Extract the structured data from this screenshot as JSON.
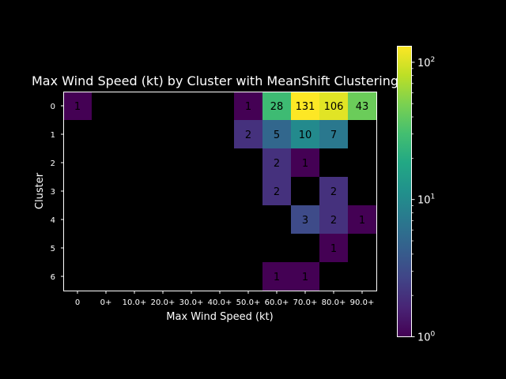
{
  "chart_data": {
    "type": "heatmap",
    "title": "Max Wind Speed (kt) by Cluster with MeanShift Clustering",
    "xlabel": "Max Wind Speed (kt)",
    "ylabel": "Cluster",
    "x_categories": [
      "0",
      "0+",
      "10.0+",
      "20.0+",
      "30.0+",
      "40.0+",
      "50.0+",
      "60.0+",
      "70.0+",
      "80.0+",
      "90.0+"
    ],
    "y_categories": [
      "0",
      "1",
      "2",
      "3",
      "4",
      "5",
      "6"
    ],
    "cells": [
      {
        "cluster": "0",
        "bin": "0",
        "value": 1
      },
      {
        "cluster": "0",
        "bin": "50.0+",
        "value": 1
      },
      {
        "cluster": "0",
        "bin": "60.0+",
        "value": 28
      },
      {
        "cluster": "0",
        "bin": "70.0+",
        "value": 131
      },
      {
        "cluster": "0",
        "bin": "80.0+",
        "value": 106
      },
      {
        "cluster": "0",
        "bin": "90.0+",
        "value": 43
      },
      {
        "cluster": "1",
        "bin": "50.0+",
        "value": 2
      },
      {
        "cluster": "1",
        "bin": "60.0+",
        "value": 5
      },
      {
        "cluster": "1",
        "bin": "70.0+",
        "value": 10
      },
      {
        "cluster": "1",
        "bin": "80.0+",
        "value": 7
      },
      {
        "cluster": "2",
        "bin": "60.0+",
        "value": 2
      },
      {
        "cluster": "2",
        "bin": "70.0+",
        "value": 1
      },
      {
        "cluster": "3",
        "bin": "60.0+",
        "value": 2
      },
      {
        "cluster": "3",
        "bin": "80.0+",
        "value": 2
      },
      {
        "cluster": "4",
        "bin": "70.0+",
        "value": 3
      },
      {
        "cluster": "4",
        "bin": "80.0+",
        "value": 2
      },
      {
        "cluster": "4",
        "bin": "90.0+",
        "value": 1
      },
      {
        "cluster": "5",
        "bin": "80.0+",
        "value": 1
      },
      {
        "cluster": "6",
        "bin": "60.0+",
        "value": 1
      },
      {
        "cluster": "6",
        "bin": "70.0+",
        "value": 1
      }
    ],
    "colorbar": {
      "scale": "log",
      "range": [
        1,
        131
      ],
      "colormap": "viridis",
      "ticks": [
        {
          "base": "10",
          "exp": "0"
        },
        {
          "base": "10",
          "exp": "1"
        },
        {
          "base": "10",
          "exp": "2"
        }
      ]
    }
  }
}
